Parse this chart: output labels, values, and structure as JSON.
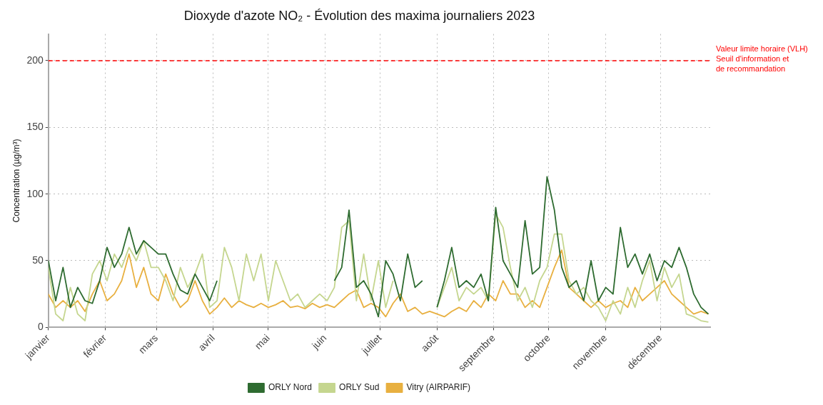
{
  "chart_data": {
    "type": "line",
    "title": "Dioxyde d'azote NO₂ - Évolution des maxima journaliers 2023",
    "ylabel": "Concentration (µg/m³)",
    "x": [
      "2023-01-01",
      "2023-01-05",
      "2023-01-09",
      "2023-01-13",
      "2023-01-17",
      "2023-01-21",
      "2023-01-25",
      "2023-01-29",
      "2023-02-02",
      "2023-02-06",
      "2023-02-10",
      "2023-02-14",
      "2023-02-18",
      "2023-02-22",
      "2023-02-26",
      "2023-03-02",
      "2023-03-06",
      "2023-03-10",
      "2023-03-14",
      "2023-03-18",
      "2023-03-22",
      "2023-03-26",
      "2023-03-30",
      "2023-04-03",
      "2023-04-07",
      "2023-04-11",
      "2023-04-15",
      "2023-04-19",
      "2023-04-23",
      "2023-04-27",
      "2023-05-01",
      "2023-05-05",
      "2023-05-09",
      "2023-05-13",
      "2023-05-17",
      "2023-05-21",
      "2023-05-25",
      "2023-05-29",
      "2023-06-02",
      "2023-06-06",
      "2023-06-10",
      "2023-06-14",
      "2023-06-18",
      "2023-06-22",
      "2023-06-26",
      "2023-06-30",
      "2023-07-04",
      "2023-07-08",
      "2023-07-12",
      "2023-07-16",
      "2023-07-20",
      "2023-07-24",
      "2023-07-28",
      "2023-08-01",
      "2023-08-05",
      "2023-08-09",
      "2023-08-13",
      "2023-08-17",
      "2023-08-21",
      "2023-08-25",
      "2023-08-29",
      "2023-09-02",
      "2023-09-06",
      "2023-09-10",
      "2023-09-14",
      "2023-09-18",
      "2023-09-22",
      "2023-09-26",
      "2023-09-30",
      "2023-10-04",
      "2023-10-08",
      "2023-10-12",
      "2023-10-16",
      "2023-10-20",
      "2023-10-24",
      "2023-10-28",
      "2023-11-01",
      "2023-11-05",
      "2023-11-09",
      "2023-11-13",
      "2023-11-17",
      "2023-11-21",
      "2023-11-25",
      "2023-11-29",
      "2023-12-03",
      "2023-12-07",
      "2023-12-11",
      "2023-12-15",
      "2023-12-19",
      "2023-12-23",
      "2023-12-27"
    ],
    "series": [
      {
        "name": "ORLY Nord",
        "color": "#2e6b30",
        "values": [
          50,
          20,
          45,
          15,
          30,
          20,
          18,
          35,
          60,
          45,
          55,
          75,
          55,
          65,
          60,
          55,
          55,
          40,
          28,
          25,
          40,
          30,
          20,
          35,
          null,
          null,
          null,
          null,
          null,
          null,
          null,
          null,
          null,
          null,
          null,
          null,
          null,
          null,
          null,
          35,
          45,
          88,
          30,
          35,
          25,
          8,
          50,
          40,
          20,
          55,
          30,
          35,
          null,
          15,
          35,
          60,
          30,
          35,
          30,
          40,
          20,
          90,
          50,
          40,
          30,
          80,
          40,
          45,
          113,
          88,
          45,
          30,
          35,
          20,
          50,
          20,
          30,
          25,
          75,
          45,
          55,
          40,
          55,
          35,
          50,
          45,
          60,
          45,
          25,
          15,
          10
        ]
      },
      {
        "name": "ORLY Sud",
        "color": "#c5d68f",
        "values": [
          45,
          10,
          5,
          30,
          10,
          5,
          40,
          50,
          35,
          55,
          45,
          60,
          50,
          65,
          45,
          45,
          35,
          20,
          45,
          30,
          40,
          55,
          15,
          20,
          60,
          45,
          20,
          55,
          35,
          55,
          20,
          50,
          35,
          20,
          25,
          15,
          20,
          25,
          20,
          30,
          75,
          80,
          20,
          55,
          20,
          50,
          15,
          35,
          null,
          null,
          null,
          null,
          null,
          15,
          30,
          45,
          20,
          30,
          25,
          30,
          20,
          85,
          75,
          45,
          20,
          30,
          15,
          35,
          45,
          70,
          70,
          35,
          25,
          30,
          20,
          15,
          5,
          20,
          10,
          30,
          15,
          35,
          50,
          20,
          45,
          30,
          40,
          10,
          8,
          5,
          4
        ]
      },
      {
        "name": "Vitry (AIRPARIF)",
        "color": "#e8b040",
        "values": [
          25,
          15,
          20,
          15,
          20,
          12,
          25,
          35,
          20,
          25,
          35,
          55,
          30,
          45,
          25,
          20,
          40,
          25,
          15,
          20,
          35,
          20,
          10,
          15,
          22,
          15,
          20,
          17,
          15,
          18,
          15,
          17,
          20,
          15,
          16,
          14,
          18,
          15,
          17,
          15,
          20,
          25,
          28,
          15,
          18,
          15,
          8,
          18,
          25,
          12,
          15,
          10,
          12,
          10,
          8,
          12,
          15,
          12,
          20,
          15,
          25,
          20,
          35,
          25,
          25,
          15,
          20,
          15,
          30,
          45,
          58,
          30,
          25,
          20,
          15,
          20,
          15,
          18,
          20,
          15,
          30,
          20,
          25,
          30,
          35,
          25,
          20,
          15,
          10,
          12,
          10
        ]
      }
    ],
    "xlim": [
      "2023-01-01",
      "2023-12-28"
    ],
    "xticks": [
      {
        "value": "2023-01-01",
        "label": "janvier"
      },
      {
        "value": "2023-02-01",
        "label": "février"
      },
      {
        "value": "2023-03-01",
        "label": "mars"
      },
      {
        "value": "2023-04-01",
        "label": "avril"
      },
      {
        "value": "2023-05-01",
        "label": "mai"
      },
      {
        "value": "2023-06-01",
        "label": "juin"
      },
      {
        "value": "2023-07-01",
        "label": "juillet"
      },
      {
        "value": "2023-08-01",
        "label": "août"
      },
      {
        "value": "2023-09-01",
        "label": "septembre"
      },
      {
        "value": "2023-10-01",
        "label": "octobre"
      },
      {
        "value": "2023-11-01",
        "label": "novembre"
      },
      {
        "value": "2023-12-01",
        "label": "décembre"
      }
    ],
    "ylim": [
      0,
      220
    ],
    "yticks": [
      0,
      50,
      100,
      150,
      200
    ],
    "ref_lines": [
      {
        "axis": "y",
        "value": 200,
        "label": "Valeur limite horaire (VLH)\nSeuil d'information et\nde recommandation",
        "color": "#ff0000",
        "line_style": "dashed"
      }
    ],
    "grid": true,
    "legend": "bottom",
    "marker": "none",
    "line_style": "solid"
  }
}
